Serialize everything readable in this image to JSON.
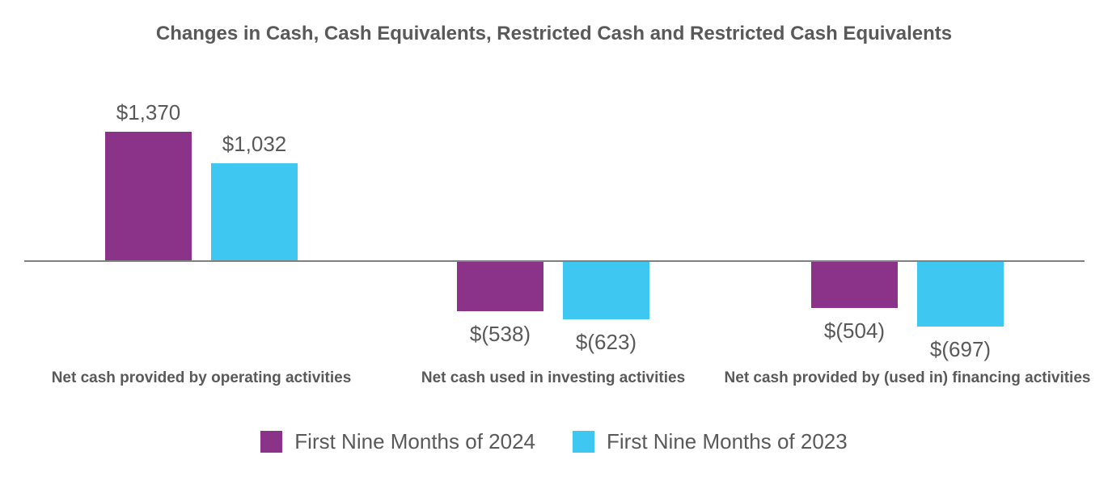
{
  "chart_data": {
    "type": "bar",
    "title": "Changes in Cash, Cash Equivalents, Restricted Cash and Restricted Cash Equivalents",
    "categories": [
      "Net cash provided by operating activities",
      "Net cash used in investing activities",
      "Net cash provided by (used in) financing activities"
    ],
    "series": [
      {
        "name": "First Nine Months of 2024",
        "color": "#8A3389",
        "values": [
          1370,
          -538,
          -504
        ],
        "value_labels": [
          "$1,370",
          "$(538)",
          "$(504)"
        ]
      },
      {
        "name": "First Nine Months of 2023",
        "color": "#3EC7F0",
        "values": [
          1032,
          -623,
          -697
        ],
        "value_labels": [
          "$1,032",
          "$(623)",
          "$(697)"
        ]
      }
    ],
    "xlabel": "",
    "ylabel": "",
    "ylim": [
      -800,
      1600
    ],
    "grid": false,
    "legend_position": "bottom",
    "colors": {
      "label_text": "#595959",
      "axis_line": "#808080",
      "background": "#FFFFFF"
    }
  }
}
